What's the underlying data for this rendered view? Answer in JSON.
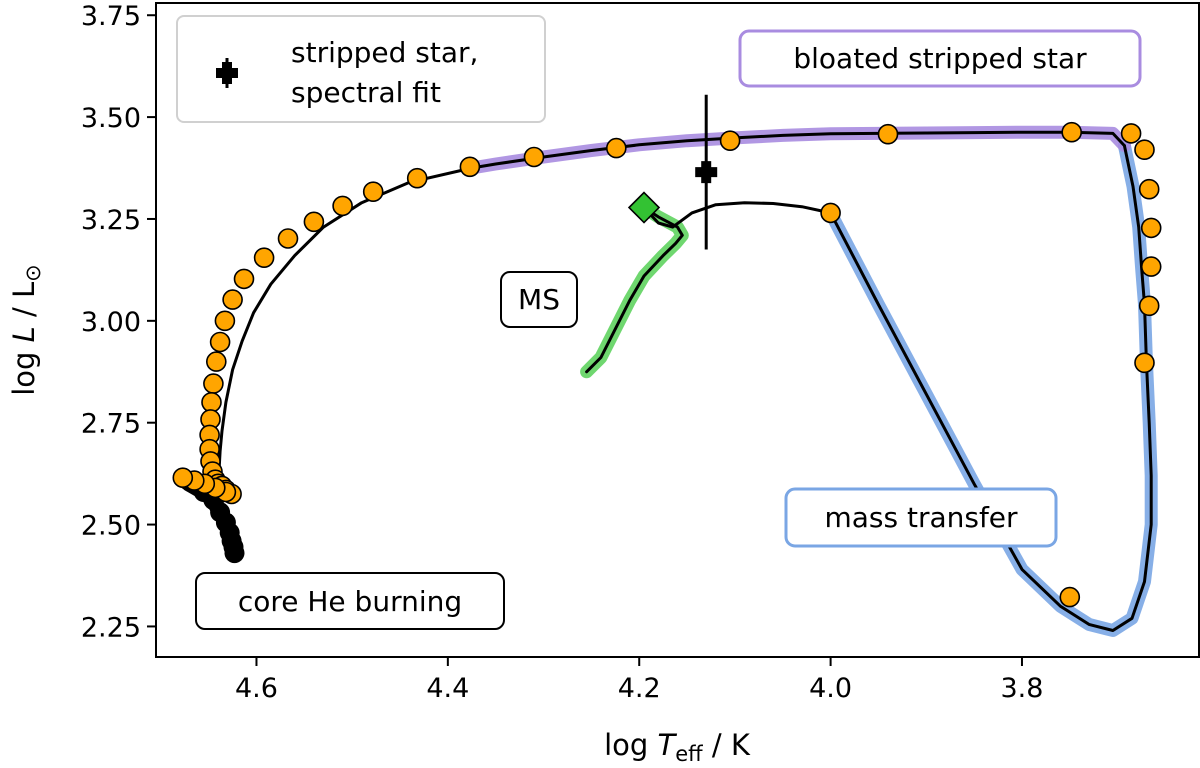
{
  "chart_data": {
    "type": "line",
    "xlabel": {
      "prefix": "log ",
      "var": "T",
      "sub": "eff",
      "suffix": " / K"
    },
    "ylabel": {
      "prefix": "log ",
      "var": "L",
      "suffix": " / L",
      "sym": "⊙"
    },
    "xlim": [
      4.705,
      3.615
    ],
    "ylim": [
      2.175,
      3.78
    ],
    "xticks": [
      4.6,
      4.4,
      4.2,
      4.0,
      3.8
    ],
    "xtick_labels": [
      "4.6",
      "4.4",
      "4.2",
      "4.0",
      "3.8"
    ],
    "yticks": [
      2.25,
      2.5,
      2.75,
      3.0,
      3.25,
      3.5,
      3.75
    ],
    "ytick_labels": [
      "2.25",
      "2.50",
      "2.75",
      "3.00",
      "3.25",
      "3.50",
      "3.75"
    ],
    "colors": {
      "track": "#000000",
      "ms": "#5fd35f",
      "mass_transfer": "#7aa6e4",
      "bloated": "#a98ce0",
      "markers": "#ffa500",
      "ms_start": "#33c233"
    },
    "legend": {
      "position": "top-left",
      "entries": [
        "stripped star,",
        "spectral fit"
      ]
    },
    "annotations": {
      "bloated": "bloated stripped star",
      "ms": "MS",
      "mass_transfer": "mass transfer",
      "core_he": "core He burning"
    },
    "spectral_fit": {
      "x": 4.13,
      "y": 3.365,
      "yerr": [
        0.19,
        0.19
      ]
    },
    "ms_start": {
      "x": 4.195,
      "y": 3.278
    },
    "series": [
      {
        "segment": "main-sequence",
        "x": [
          4.255,
          4.24,
          4.225,
          4.21,
          4.195,
          4.175,
          4.162,
          4.155,
          4.16,
          4.18,
          4.195
        ],
        "y": [
          2.875,
          2.91,
          2.98,
          3.05,
          3.11,
          3.16,
          3.19,
          3.21,
          3.23,
          3.255,
          3.278
        ]
      },
      {
        "segment": "hook",
        "x": [
          4.195,
          4.18,
          4.165,
          4.145,
          4.12,
          4.09,
          4.06,
          4.03,
          4.0
        ],
        "y": [
          3.278,
          3.24,
          3.23,
          3.265,
          3.285,
          3.29,
          3.288,
          3.28,
          3.265
        ]
      },
      {
        "segment": "mass-transfer",
        "x": [
          4.0,
          3.95,
          3.9,
          3.85,
          3.8,
          3.76,
          3.73,
          3.705,
          3.685,
          3.672,
          3.665,
          3.665,
          3.667,
          3.67,
          3.672,
          3.675,
          3.678,
          3.684,
          3.693
        ],
        "y": [
          3.265,
          3.04,
          2.82,
          2.6,
          2.39,
          2.3,
          2.255,
          2.24,
          2.27,
          2.36,
          2.5,
          2.62,
          2.75,
          2.9,
          3.04,
          3.13,
          3.23,
          3.33,
          3.43
        ]
      },
      {
        "segment": "bloated-stripped",
        "x": [
          3.693,
          3.705,
          3.75,
          3.8,
          3.85,
          3.9,
          3.95,
          4.0,
          4.05,
          4.1,
          4.15,
          4.2,
          4.25,
          4.3,
          4.35,
          4.375
        ],
        "y": [
          3.43,
          3.46,
          3.463,
          3.463,
          3.462,
          3.461,
          3.46,
          3.459,
          3.455,
          3.449,
          3.442,
          3.432,
          3.418,
          3.402,
          3.385,
          3.375
        ]
      },
      {
        "segment": "contraction",
        "x": [
          4.375,
          4.44,
          4.49,
          4.53,
          4.56,
          4.585,
          4.603,
          4.615,
          4.625,
          4.632,
          4.636,
          4.638,
          4.639,
          4.64,
          4.64,
          4.639
        ],
        "y": [
          3.375,
          3.34,
          3.29,
          3.23,
          3.16,
          3.09,
          3.02,
          2.95,
          2.88,
          2.8,
          2.73,
          2.68,
          2.64,
          2.61,
          2.59,
          2.58
        ]
      },
      {
        "segment": "core-he-burning",
        "x": [
          4.639,
          4.66,
          4.672,
          4.677,
          4.67,
          4.655,
          4.645,
          4.638,
          4.632,
          4.628,
          4.626,
          4.624,
          4.623
        ],
        "y": [
          2.58,
          2.6,
          2.61,
          2.612,
          2.6,
          2.58,
          2.56,
          2.53,
          2.505,
          2.48,
          2.46,
          2.445,
          2.43
        ]
      }
    ],
    "orange_markers": {
      "x": [
        4.0,
        3.75,
        3.672,
        3.667,
        3.665,
        3.665,
        3.667,
        3.672,
        3.686,
        3.748,
        3.94,
        4.105,
        4.224,
        4.31,
        4.377,
        4.432,
        4.478,
        4.51,
        4.54,
        4.567,
        4.592,
        4.613,
        4.625,
        4.633,
        4.638,
        4.642,
        4.645,
        4.647,
        4.648,
        4.649,
        4.649,
        4.648,
        4.646,
        4.643,
        4.64,
        4.636,
        4.632,
        4.626,
        4.632,
        4.643,
        4.654,
        4.665,
        4.677
      ],
      "y": [
        3.265,
        2.322,
        2.897,
        3.037,
        3.133,
        3.228,
        3.323,
        3.42,
        3.46,
        3.463,
        3.458,
        3.442,
        3.424,
        3.402,
        3.378,
        3.35,
        3.317,
        3.282,
        3.243,
        3.202,
        3.155,
        3.103,
        3.052,
        3.0,
        2.948,
        2.9,
        2.846,
        2.8,
        2.758,
        2.72,
        2.685,
        2.655,
        2.63,
        2.61,
        2.6,
        2.595,
        2.585,
        2.575,
        2.58,
        2.59,
        2.6,
        2.608,
        2.615
      ]
    }
  }
}
